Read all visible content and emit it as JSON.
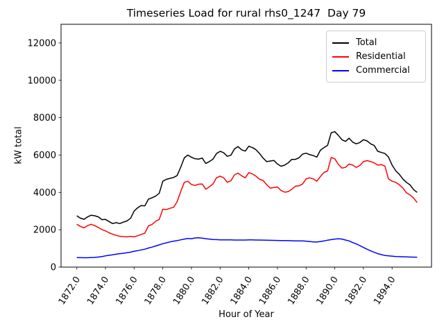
{
  "window": {
    "background": "#ffffff"
  },
  "chart_data": {
    "type": "line",
    "title": "Timeseries Load for rural rhs0_1247  Day 79",
    "xlabel": "Hour of Year",
    "ylabel": "kW total",
    "grid": false,
    "legend_position": "upper-right",
    "xlim": [
      1870.9,
      1896.75
    ],
    "ylim": [
      0,
      13000
    ],
    "x_tick_values": [
      1872,
      1874,
      1876,
      1878,
      1880,
      1882,
      1884,
      1886,
      1888,
      1890,
      1892,
      1894
    ],
    "x_tick_labels": [
      "1872.0",
      "1874.0",
      "1876.0",
      "1878.0",
      "1880.0",
      "1882.0",
      "1884.0",
      "1886.0",
      "1888.0",
      "1890.0",
      "1892.0",
      "1894.0"
    ],
    "y_tick_values": [
      0,
      2000,
      4000,
      6000,
      8000,
      10000,
      12000
    ],
    "y_tick_labels": [
      "0",
      "2000",
      "4000",
      "6000",
      "8000",
      "10000",
      "12000"
    ],
    "x_start": 1872.0,
    "x_step": 0.25,
    "series": [
      {
        "name": "Total",
        "color": "#000000",
        "values": [
          2750,
          2620,
          2560,
          2690,
          2780,
          2750,
          2690,
          2540,
          2550,
          2440,
          2330,
          2380,
          2330,
          2410,
          2470,
          2610,
          3000,
          3180,
          3300,
          3280,
          3640,
          3710,
          3800,
          3950,
          4600,
          4700,
          4750,
          4800,
          4900,
          5350,
          5850,
          6000,
          5880,
          5800,
          5780,
          5840,
          5550,
          5650,
          5780,
          6080,
          6200,
          6120,
          5930,
          5990,
          6330,
          6450,
          6280,
          6210,
          6470,
          6400,
          6290,
          6080,
          5830,
          5650,
          5680,
          5710,
          5520,
          5400,
          5460,
          5580,
          5770,
          5770,
          5850,
          6050,
          6100,
          6020,
          5970,
          5890,
          6260,
          6400,
          6520,
          7190,
          7250,
          7050,
          6820,
          6730,
          6900,
          6690,
          6600,
          6670,
          6820,
          6760,
          6600,
          6510,
          6200,
          6140,
          6080,
          5890,
          5460,
          5160,
          4970,
          4720,
          4540,
          4400,
          4150,
          4000
        ]
      },
      {
        "name": "Residential",
        "color": "#ff0000",
        "values": [
          2290,
          2180,
          2100,
          2220,
          2290,
          2220,
          2120,
          2010,
          1940,
          1840,
          1760,
          1700,
          1650,
          1630,
          1620,
          1640,
          1620,
          1680,
          1750,
          1820,
          2210,
          2280,
          2450,
          2550,
          3100,
          3080,
          3150,
          3200,
          3500,
          4050,
          4540,
          4600,
          4420,
          4370,
          4440,
          4450,
          4170,
          4300,
          4450,
          4780,
          4870,
          4780,
          4540,
          4620,
          4940,
          5030,
          4890,
          4780,
          5060,
          4990,
          4870,
          4700,
          4640,
          4410,
          4230,
          4260,
          4290,
          4100,
          4010,
          4040,
          4170,
          4330,
          4350,
          4450,
          4720,
          4780,
          4720,
          4600,
          4850,
          5070,
          5150,
          5870,
          5800,
          5500,
          5300,
          5340,
          5520,
          5460,
          5340,
          5440,
          5650,
          5700,
          5650,
          5580,
          5460,
          5490,
          5400,
          4720,
          4600,
          4540,
          4410,
          4230,
          3980,
          3860,
          3700,
          3450
        ]
      },
      {
        "name": "Commercial",
        "color": "#0000ff",
        "values": [
          510,
          505,
          500,
          500,
          510,
          520,
          540,
          560,
          600,
          630,
          660,
          690,
          720,
          740,
          770,
          800,
          850,
          880,
          920,
          960,
          1020,
          1070,
          1130,
          1190,
          1250,
          1300,
          1350,
          1390,
          1420,
          1460,
          1500,
          1530,
          1520,
          1560,
          1570,
          1550,
          1520,
          1500,
          1480,
          1470,
          1460,
          1460,
          1455,
          1455,
          1450,
          1450,
          1450,
          1450,
          1455,
          1455,
          1450,
          1450,
          1445,
          1440,
          1435,
          1430,
          1425,
          1420,
          1420,
          1415,
          1410,
          1405,
          1405,
          1400,
          1390,
          1370,
          1350,
          1350,
          1370,
          1400,
          1440,
          1470,
          1500,
          1520,
          1500,
          1450,
          1400,
          1310,
          1240,
          1150,
          1050,
          960,
          870,
          790,
          720,
          670,
          620,
          600,
          585,
          570,
          560,
          550,
          545,
          540,
          535,
          530
        ]
      }
    ]
  }
}
